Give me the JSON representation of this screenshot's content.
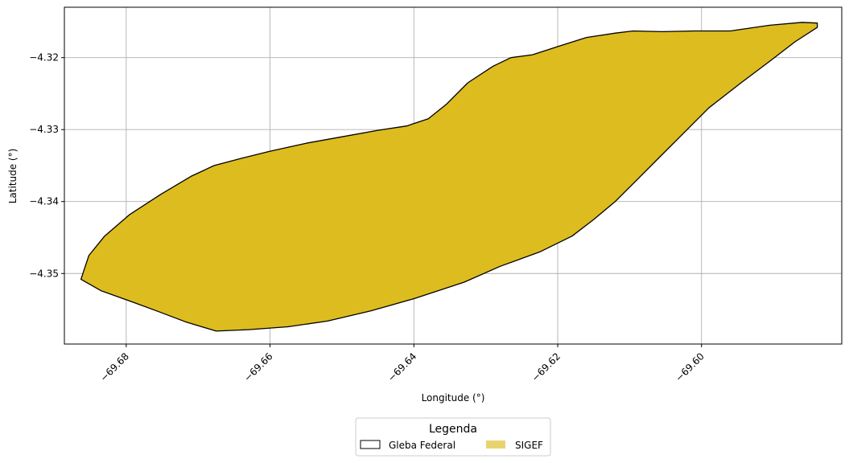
{
  "chart_data": {
    "type": "map",
    "xlabel": "Longitude (°)",
    "ylabel": "Latitude (°)",
    "xlim": [
      -69.6886,
      -69.5805
    ],
    "ylim": [
      -4.3598,
      -4.313
    ],
    "x_ticks": [
      {
        "value": -69.68,
        "label": "−69.68"
      },
      {
        "value": -69.66,
        "label": "−69.66"
      },
      {
        "value": -69.64,
        "label": "−69.64"
      },
      {
        "value": -69.62,
        "label": "−69.62"
      },
      {
        "value": -69.6,
        "label": "−69.60"
      }
    ],
    "y_ticks": [
      {
        "value": -4.32,
        "label": "−4.32"
      },
      {
        "value": -4.33,
        "label": "−4.33"
      },
      {
        "value": -4.34,
        "label": "−4.34"
      },
      {
        "value": -4.35,
        "label": "−4.35"
      }
    ],
    "grid": true,
    "layers": [
      {
        "name": "Gleba Federal",
        "fill": "none",
        "stroke": "#000000"
      },
      {
        "name": "SIGEF",
        "fill": "#ddbc1f",
        "stroke": "#000000",
        "legend_fill": "#e8d46e"
      }
    ],
    "polygon": [
      [
        -69.5839,
        -4.3152
      ],
      [
        -69.586,
        -4.3151
      ],
      [
        -69.5905,
        -4.3155
      ],
      [
        -69.596,
        -4.3163
      ],
      [
        -69.601,
        -4.3163
      ],
      [
        -69.6055,
        -4.3164
      ],
      [
        -69.6095,
        -4.3163
      ],
      [
        -69.612,
        -4.3166
      ],
      [
        -69.616,
        -4.3172
      ],
      [
        -69.6195,
        -4.3183
      ],
      [
        -69.6235,
        -4.3196
      ],
      [
        -69.6265,
        -4.32
      ],
      [
        -69.629,
        -4.3212
      ],
      [
        -69.6325,
        -4.3235
      ],
      [
        -69.6355,
        -4.3265
      ],
      [
        -69.638,
        -4.3285
      ],
      [
        -69.641,
        -4.3295
      ],
      [
        -69.645,
        -4.3301
      ],
      [
        -69.65,
        -4.331
      ],
      [
        -69.655,
        -4.3319
      ],
      [
        -69.66,
        -4.333
      ],
      [
        -69.664,
        -4.334
      ],
      [
        -69.6678,
        -4.335
      ],
      [
        -69.671,
        -4.3365
      ],
      [
        -69.6752,
        -4.339
      ],
      [
        -69.6795,
        -4.3418
      ],
      [
        -69.683,
        -4.3448
      ],
      [
        -69.6852,
        -4.3475
      ],
      [
        -69.6863,
        -4.3508
      ],
      [
        -69.6835,
        -4.3524
      ],
      [
        -69.679,
        -4.354
      ],
      [
        -69.6755,
        -4.3553
      ],
      [
        -69.6718,
        -4.3567
      ],
      [
        -69.6675,
        -4.358
      ],
      [
        -69.663,
        -4.3578
      ],
      [
        -69.6575,
        -4.3574
      ],
      [
        -69.652,
        -4.3566
      ],
      [
        -69.646,
        -4.3552
      ],
      [
        -69.64,
        -4.3535
      ],
      [
        -69.633,
        -4.3512
      ],
      [
        -69.628,
        -4.349
      ],
      [
        -69.6225,
        -4.347
      ],
      [
        -69.618,
        -4.3448
      ],
      [
        -69.615,
        -4.3425
      ],
      [
        -69.612,
        -4.34
      ],
      [
        -69.609,
        -4.337
      ],
      [
        -69.6055,
        -4.3335
      ],
      [
        -69.6025,
        -4.3305
      ],
      [
        -69.599,
        -4.327
      ],
      [
        -69.5945,
        -4.3235
      ],
      [
        -69.5905,
        -4.3205
      ],
      [
        -69.587,
        -4.3178
      ],
      [
        -69.5839,
        -4.3158
      ]
    ]
  },
  "legend": {
    "title": "Legenda",
    "items": [
      {
        "label": "Gleba Federal"
      },
      {
        "label": "SIGEF"
      }
    ]
  }
}
